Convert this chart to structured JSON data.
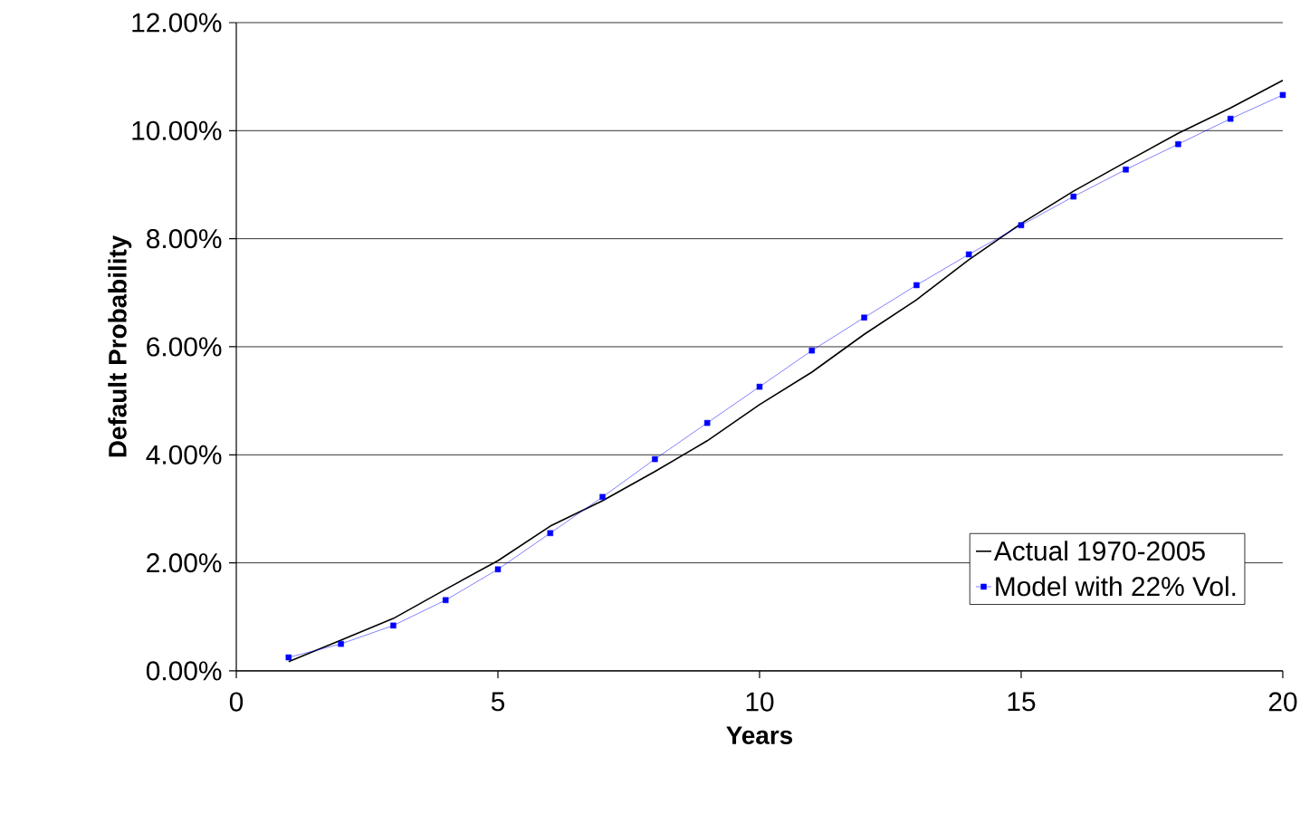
{
  "chart_data": {
    "type": "line",
    "xlabel": "Years",
    "ylabel": "Default Probability",
    "x": [
      1,
      2,
      3,
      4,
      5,
      6,
      7,
      8,
      9,
      10,
      11,
      12,
      13,
      14,
      15,
      16,
      17,
      18,
      19,
      20
    ],
    "series": [
      {
        "name": "Actual 1970-2005",
        "color": "#000000",
        "marker": "none",
        "values": [
          0.17,
          0.57,
          0.97,
          1.51,
          2.04,
          2.68,
          3.15,
          3.69,
          4.26,
          4.93,
          5.53,
          6.23,
          6.87,
          7.61,
          8.28,
          8.88,
          9.42,
          9.95,
          10.42,
          10.93
        ]
      },
      {
        "name": "Model with 22% Vol.",
        "color": "#0000ff",
        "marker": "square",
        "values": [
          0.25,
          0.5,
          0.84,
          1.31,
          1.88,
          2.55,
          3.22,
          3.92,
          4.59,
          5.26,
          5.93,
          6.54,
          7.14,
          7.71,
          8.25,
          8.78,
          9.28,
          9.75,
          10.22,
          10.66
        ]
      }
    ],
    "xlim": [
      0,
      20
    ],
    "xticks": [
      0,
      5,
      10,
      15,
      20
    ],
    "ylim": [
      0,
      12
    ],
    "yticks": [
      {
        "value": 0,
        "label": "0.00%"
      },
      {
        "value": 2,
        "label": "2.00%"
      },
      {
        "value": 4,
        "label": "4.00%"
      },
      {
        "value": 6,
        "label": "6.00%"
      },
      {
        "value": 8,
        "label": "8.00%"
      },
      {
        "value": 10,
        "label": "10.00%"
      },
      {
        "value": 12,
        "label": "12.00%"
      }
    ],
    "grid": "y",
    "legend": "bottom right",
    "line_style": "solid"
  }
}
